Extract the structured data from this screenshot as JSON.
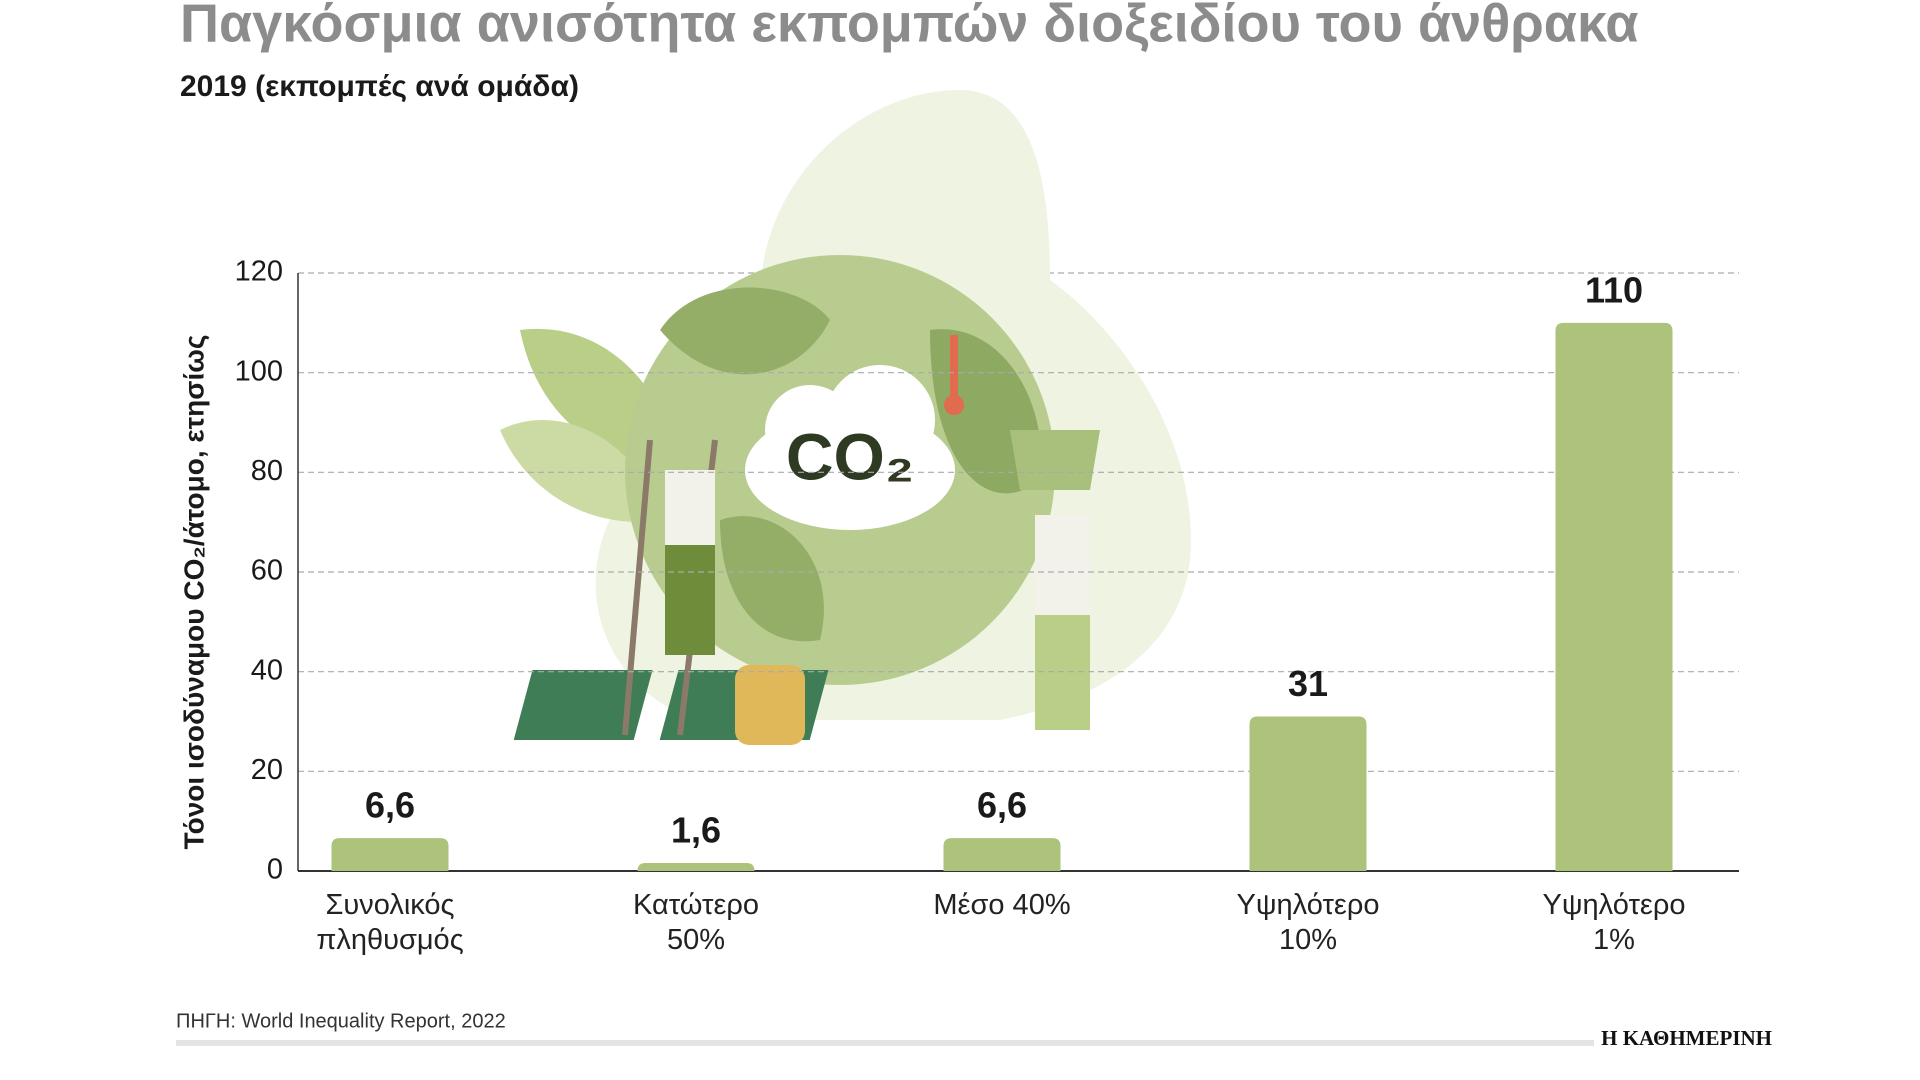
{
  "chart_data": {
    "type": "bar",
    "title": "Παγκόσμια ανισότητα εκπομπών διοξειδίου του άνθρακα",
    "subtitle": "2019 (εκπομπές ανά ομάδα)",
    "ylabel": "Τόνοι ισοδύναμου CO₂/άτομο, ετησίως",
    "categories": [
      "Συνολικός πληθυσμός",
      "Κατώτερο 50%",
      "Μέσο 40%",
      "Υψηλότερο 10%",
      "Υψηλότερο 1%"
    ],
    "values": [
      6.6,
      1.6,
      6.6,
      31,
      110
    ],
    "value_labels": [
      "6,6",
      "1,6",
      "6,6",
      "31",
      "110"
    ],
    "color": "#adc27a",
    "ylim": [
      0,
      120
    ],
    "yticks": [
      0,
      20,
      40,
      60,
      80,
      100,
      120
    ],
    "grid": true,
    "illustration_text": "CO₂",
    "source": "ΠΗΓΗ: World Inequality Report, 2022",
    "brand": "Η ΚΑΘΗΜΕΡΙΝΗ"
  }
}
